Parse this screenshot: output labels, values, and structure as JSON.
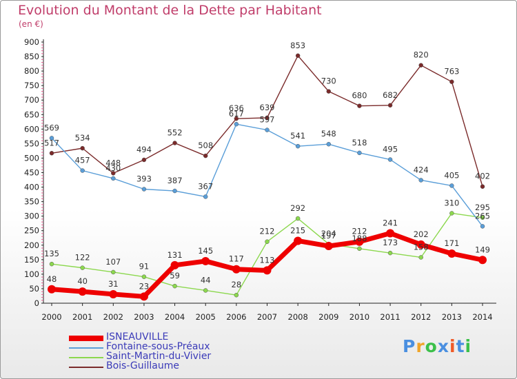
{
  "title": "Evolution du Montant de la Dette par Habitant",
  "unit": "(en €)",
  "brand": {
    "text": "Proxiti",
    "colors": [
      "#4a8fe0",
      "#f0a52a",
      "#3cc04a",
      "#4a8fe0",
      "#f05a28",
      "#4a8fe0",
      "#3cc04a"
    ]
  },
  "chart_data": {
    "type": "line",
    "x": [
      2000,
      2001,
      2002,
      2003,
      2004,
      2005,
      2006,
      2007,
      2008,
      2009,
      2010,
      2011,
      2012,
      2013,
      2014
    ],
    "ylim": [
      0,
      900
    ],
    "yticks": [
      0,
      50,
      100,
      150,
      200,
      250,
      300,
      350,
      400,
      450,
      500,
      550,
      600,
      650,
      700,
      750,
      800,
      850,
      900
    ],
    "grid": false,
    "legend_position": "bottom-left",
    "series": [
      {
        "name": "ISNEAUVILLE",
        "color": "#ee0000",
        "values": [
          48,
          40,
          31,
          23,
          131,
          145,
          117,
          113,
          215,
          197,
          212,
          241,
          202,
          171,
          149
        ]
      },
      {
        "name": "Fontaine-sous-Préaux",
        "color": "#5a9ed8",
        "values": [
          569,
          457,
          430,
          393,
          387,
          367,
          617,
          597,
          541,
          548,
          518,
          495,
          424,
          405,
          265
        ]
      },
      {
        "name": "Saint-Martin-du-Vivier",
        "color": "#8cd84e",
        "values": [
          135,
          122,
          107,
          91,
          59,
          44,
          28,
          212,
          292,
          204,
          188,
          173,
          158,
          310,
          295
        ]
      },
      {
        "name": "Bois-Guillaume",
        "color": "#7a2a2a",
        "values": [
          517,
          534,
          448,
          494,
          552,
          508,
          636,
          639,
          853,
          730,
          680,
          682,
          820,
          763,
          402
        ]
      }
    ]
  }
}
